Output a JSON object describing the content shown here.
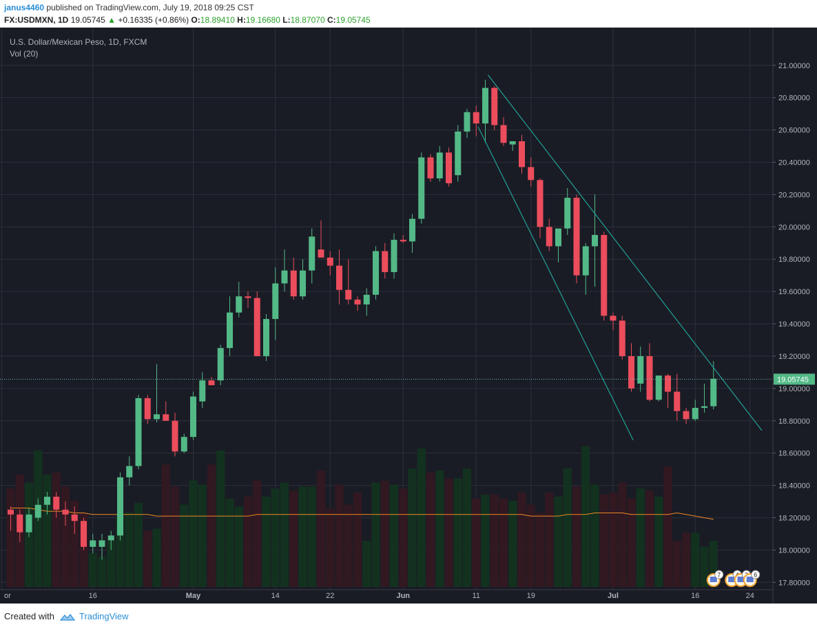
{
  "header": {
    "user": "janus4460",
    "published_text": "published on TradingView.com, July 19, 2018 09:25 CST",
    "symbol_label": "FX:USDMXN, 1D",
    "last": "19.05745",
    "change_arrow": "▲",
    "change": "+0.16335 (+0.86%)",
    "o_label": "O:",
    "o_value": "18.89410",
    "h_label": "H:",
    "h_value": "19.16680",
    "l_label": "L:",
    "l_value": "18.87070",
    "c_label": "C:",
    "c_value": "19.05745"
  },
  "footer": {
    "created_with": "Created with",
    "brand": "TradingView"
  },
  "colors": {
    "background": "#1a1c25",
    "grid": "#2c2f3a",
    "up": "#53b987",
    "down": "#eb4d5c",
    "vol_up": "#12321f",
    "vol_down": "#321821",
    "ma": "#f08a24",
    "trendline": "#21a196",
    "price_line": "#6ec0b4",
    "text": "#b2b5be"
  },
  "chart_data": {
    "type": "candlestick",
    "title": "U.S. Dollar/Mexican Peso, 1D, FXCM",
    "volume_label": "Vol (20)",
    "ylim": [
      17.78,
      21.08
    ],
    "y_ticks": [
      "21.00000",
      "20.80000",
      "20.60000",
      "20.40000",
      "20.20000",
      "20.00000",
      "19.80000",
      "19.60000",
      "19.40000",
      "19.20000",
      "19.00000",
      "18.80000",
      "18.60000",
      "18.40000",
      "18.20000",
      "18.00000",
      "17.80000"
    ],
    "x_ticks": [
      "or",
      "16",
      "May",
      "14",
      "22",
      "Jun",
      "11",
      "19",
      "Jul",
      "16",
      "24"
    ],
    "x_tick_index": [
      -1,
      9,
      20,
      29,
      35,
      43,
      51,
      57,
      66,
      75,
      81
    ],
    "current_price": "19.05745",
    "candles": [
      {
        "o": 18.25,
        "h": 18.27,
        "l": 18.12,
        "c": 18.22
      },
      {
        "o": 18.22,
        "h": 18.25,
        "l": 18.05,
        "c": 18.11
      },
      {
        "o": 18.11,
        "h": 18.26,
        "l": 18.08,
        "c": 18.22
      },
      {
        "o": 18.2,
        "h": 18.32,
        "l": 18.18,
        "c": 18.28
      },
      {
        "o": 18.28,
        "h": 18.36,
        "l": 18.22,
        "c": 18.33
      },
      {
        "o": 18.33,
        "h": 18.36,
        "l": 18.2,
        "c": 18.25
      },
      {
        "o": 18.25,
        "h": 18.3,
        "l": 18.15,
        "c": 18.22
      },
      {
        "o": 18.22,
        "h": 18.27,
        "l": 18.1,
        "c": 18.18
      },
      {
        "o": 18.18,
        "h": 18.2,
        "l": 18.0,
        "c": 18.02
      },
      {
        "o": 18.02,
        "h": 18.1,
        "l": 17.98,
        "c": 18.06
      },
      {
        "o": 18.02,
        "h": 18.1,
        "l": 17.94,
        "c": 18.06
      },
      {
        "o": 18.06,
        "h": 18.12,
        "l": 18.0,
        "c": 18.09
      },
      {
        "o": 18.09,
        "h": 18.48,
        "l": 18.06,
        "c": 18.45
      },
      {
        "o": 18.45,
        "h": 18.58,
        "l": 18.4,
        "c": 18.52
      },
      {
        "o": 18.52,
        "h": 18.96,
        "l": 18.5,
        "c": 18.94
      },
      {
        "o": 18.94,
        "h": 18.96,
        "l": 18.78,
        "c": 18.81
      },
      {
        "o": 18.81,
        "h": 19.15,
        "l": 18.79,
        "c": 18.84
      },
      {
        "o": 18.84,
        "h": 18.92,
        "l": 18.8,
        "c": 18.8
      },
      {
        "o": 18.8,
        "h": 18.85,
        "l": 18.58,
        "c": 18.61
      },
      {
        "o": 18.61,
        "h": 18.72,
        "l": 18.6,
        "c": 18.7
      },
      {
        "o": 18.7,
        "h": 18.98,
        "l": 18.68,
        "c": 18.95
      },
      {
        "o": 18.92,
        "h": 19.1,
        "l": 18.88,
        "c": 19.05
      },
      {
        "o": 19.05,
        "h": 19.07,
        "l": 19.02,
        "c": 19.02
      },
      {
        "o": 19.05,
        "h": 19.27,
        "l": 19.02,
        "c": 19.25
      },
      {
        "o": 19.25,
        "h": 19.57,
        "l": 19.2,
        "c": 19.47
      },
      {
        "o": 19.47,
        "h": 19.66,
        "l": 19.44,
        "c": 19.57
      },
      {
        "o": 19.57,
        "h": 19.6,
        "l": 19.5,
        "c": 19.56
      },
      {
        "o": 19.56,
        "h": 19.6,
        "l": 19.2,
        "c": 19.2
      },
      {
        "o": 19.2,
        "h": 19.46,
        "l": 19.17,
        "c": 19.43
      },
      {
        "o": 19.43,
        "h": 19.75,
        "l": 19.3,
        "c": 19.65
      },
      {
        "o": 19.65,
        "h": 19.86,
        "l": 19.6,
        "c": 19.73
      },
      {
        "o": 19.73,
        "h": 19.81,
        "l": 19.55,
        "c": 19.57
      },
      {
        "o": 19.57,
        "h": 19.8,
        "l": 19.55,
        "c": 19.73
      },
      {
        "o": 19.73,
        "h": 19.99,
        "l": 19.65,
        "c": 19.94
      },
      {
        "o": 19.86,
        "h": 20.04,
        "l": 19.82,
        "c": 19.81
      },
      {
        "o": 19.81,
        "h": 19.85,
        "l": 19.7,
        "c": 19.76
      },
      {
        "o": 19.76,
        "h": 19.86,
        "l": 19.52,
        "c": 19.61
      },
      {
        "o": 19.61,
        "h": 19.8,
        "l": 19.52,
        "c": 19.55
      },
      {
        "o": 19.55,
        "h": 19.57,
        "l": 19.48,
        "c": 19.52
      },
      {
        "o": 19.52,
        "h": 19.62,
        "l": 19.45,
        "c": 19.58
      },
      {
        "o": 19.58,
        "h": 19.88,
        "l": 19.55,
        "c": 19.85
      },
      {
        "o": 19.85,
        "h": 19.9,
        "l": 19.68,
        "c": 19.72
      },
      {
        "o": 19.72,
        "h": 19.96,
        "l": 19.68,
        "c": 19.92
      },
      {
        "o": 19.92,
        "h": 19.95,
        "l": 19.9,
        "c": 19.91
      },
      {
        "o": 19.91,
        "h": 20.08,
        "l": 19.84,
        "c": 20.05
      },
      {
        "o": 20.05,
        "h": 20.46,
        "l": 20.02,
        "c": 20.43
      },
      {
        "o": 20.43,
        "h": 20.45,
        "l": 20.28,
        "c": 20.3
      },
      {
        "o": 20.3,
        "h": 20.5,
        "l": 20.28,
        "c": 20.46
      },
      {
        "o": 20.46,
        "h": 20.49,
        "l": 20.25,
        "c": 20.27
      },
      {
        "o": 20.32,
        "h": 20.63,
        "l": 20.28,
        "c": 20.59
      },
      {
        "o": 20.59,
        "h": 20.73,
        "l": 20.55,
        "c": 20.71
      },
      {
        "o": 20.71,
        "h": 20.75,
        "l": 20.56,
        "c": 20.64
      },
      {
        "o": 20.64,
        "h": 20.91,
        "l": 20.52,
        "c": 20.86
      },
      {
        "o": 20.86,
        "h": 20.87,
        "l": 20.6,
        "c": 20.63
      },
      {
        "o": 20.63,
        "h": 20.68,
        "l": 20.5,
        "c": 20.52
      },
      {
        "o": 20.51,
        "h": 20.53,
        "l": 20.47,
        "c": 20.53
      },
      {
        "o": 20.53,
        "h": 20.57,
        "l": 20.33,
        "c": 20.37
      },
      {
        "o": 20.37,
        "h": 20.43,
        "l": 20.25,
        "c": 20.29
      },
      {
        "o": 20.29,
        "h": 20.3,
        "l": 19.93,
        "c": 20.0
      },
      {
        "o": 20.0,
        "h": 20.05,
        "l": 19.85,
        "c": 19.88
      },
      {
        "o": 19.88,
        "h": 19.98,
        "l": 19.78,
        "c": 19.99
      },
      {
        "o": 19.99,
        "h": 20.24,
        "l": 19.95,
        "c": 20.18
      },
      {
        "o": 20.18,
        "h": 20.2,
        "l": 19.65,
        "c": 19.7
      },
      {
        "o": 19.7,
        "h": 19.9,
        "l": 19.58,
        "c": 19.88
      },
      {
        "o": 19.88,
        "h": 20.2,
        "l": 19.63,
        "c": 19.95
      },
      {
        "o": 19.95,
        "h": 19.97,
        "l": 19.42,
        "c": 19.45
      },
      {
        "o": 19.45,
        "h": 19.47,
        "l": 19.36,
        "c": 19.42
      },
      {
        "o": 19.42,
        "h": 19.45,
        "l": 19.18,
        "c": 19.2
      },
      {
        "o": 19.2,
        "h": 19.28,
        "l": 18.98,
        "c": 19.0
      },
      {
        "o": 19.03,
        "h": 19.26,
        "l": 18.98,
        "c": 19.2
      },
      {
        "o": 19.2,
        "h": 19.28,
        "l": 18.92,
        "c": 18.93
      },
      {
        "o": 18.93,
        "h": 19.08,
        "l": 18.92,
        "c": 19.08
      },
      {
        "o": 19.08,
        "h": 19.09,
        "l": 18.88,
        "c": 18.98
      },
      {
        "o": 18.98,
        "h": 19.09,
        "l": 18.8,
        "c": 18.86
      },
      {
        "o": 18.86,
        "h": 18.88,
        "l": 18.78,
        "c": 18.81
      },
      {
        "o": 18.81,
        "h": 18.93,
        "l": 18.8,
        "c": 18.88
      },
      {
        "o": 18.88,
        "h": 19.03,
        "l": 18.85,
        "c": 18.89
      },
      {
        "o": 18.89,
        "h": 19.17,
        "l": 18.87,
        "c": 19.06
      }
    ],
    "volume": [
      49,
      56,
      52,
      68,
      56,
      57,
      50,
      43,
      37,
      17,
      15,
      23,
      36,
      37,
      42,
      28,
      29,
      61,
      50,
      41,
      53,
      51,
      61,
      68,
      44,
      40,
      45,
      53,
      45,
      49,
      52,
      48,
      50,
      50,
      58,
      39,
      51,
      41,
      47,
      23,
      52,
      53,
      51,
      49,
      59,
      69,
      57,
      58,
      54,
      54,
      59,
      44,
      46,
      46,
      44,
      43,
      47,
      41,
      37,
      47,
      45,
      59,
      50,
      70,
      51,
      46,
      47,
      52,
      44,
      49,
      48,
      45,
      60,
      23,
      27,
      27,
      20,
      23
    ],
    "ma20": [
      18.26,
      18.26,
      18.26,
      18.25,
      18.24,
      18.24,
      18.24,
      18.23,
      18.23,
      18.22,
      18.22,
      18.22,
      18.22,
      18.22,
      18.22,
      18.22,
      18.21,
      18.21,
      18.21,
      18.21,
      18.21,
      18.21,
      18.21,
      18.21,
      18.21,
      18.21,
      18.21,
      18.22,
      18.22,
      18.22,
      18.22,
      18.22,
      18.22,
      18.22,
      18.22,
      18.22,
      18.22,
      18.22,
      18.22,
      18.22,
      18.22,
      18.22,
      18.22,
      18.22,
      18.22,
      18.22,
      18.22,
      18.22,
      18.22,
      18.22,
      18.22,
      18.22,
      18.22,
      18.22,
      18.22,
      18.22,
      18.22,
      18.21,
      18.21,
      18.21,
      18.21,
      18.22,
      18.22,
      18.22,
      18.23,
      18.23,
      18.23,
      18.23,
      18.22,
      18.22,
      18.22,
      18.22,
      18.22,
      18.23,
      18.22,
      18.21,
      18.2,
      18.19
    ],
    "trendlines": [
      {
        "start": {
          "candle": 51.2,
          "price": 20.62
        },
        "end": {
          "candle": 68.2,
          "price": 18.68
        }
      },
      {
        "start": {
          "candle": 52.3,
          "price": 20.94
        },
        "end": {
          "candle": 82.3,
          "price": 18.74
        }
      }
    ],
    "events": [
      {
        "candle": 77,
        "count": "7"
      },
      {
        "candle": 79,
        "count": "4"
      },
      {
        "candle": 80,
        "count": "3"
      },
      {
        "candle": 81,
        "count": "6"
      }
    ]
  }
}
